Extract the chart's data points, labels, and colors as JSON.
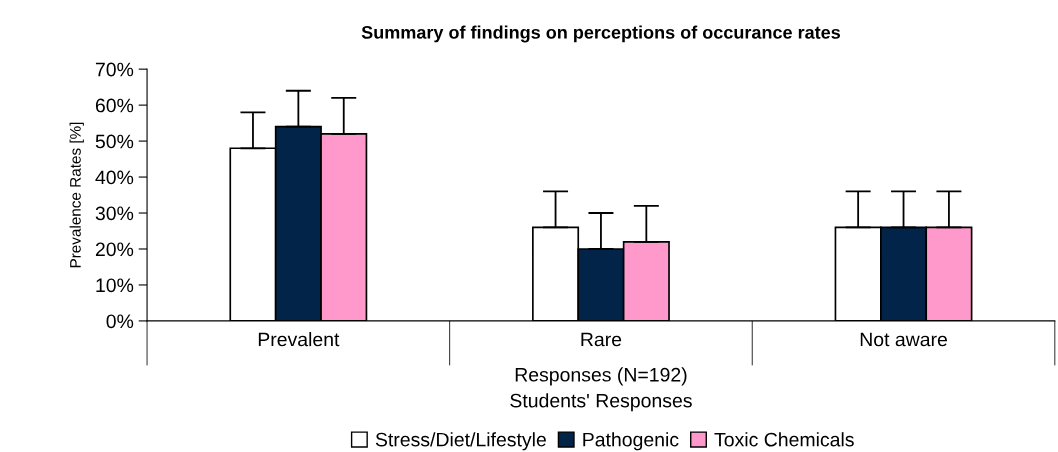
{
  "chart_data": {
    "type": "bar",
    "title": "Summary of findings on perceptions of occurance rates",
    "categories": [
      "Prevalent",
      "Rare",
      "Not aware"
    ],
    "series": [
      {
        "name": "Stress/Diet/Lifestyle",
        "color": "#ffffff",
        "values": [
          48,
          26,
          26
        ],
        "errors": [
          [
            48,
            58
          ],
          [
            26,
            36
          ],
          [
            26,
            36
          ]
        ]
      },
      {
        "name": "Pathogenic",
        "color": "#022449",
        "values": [
          54,
          20,
          26
        ],
        "errors": [
          [
            54,
            64
          ],
          [
            20,
            30
          ],
          [
            26,
            36
          ]
        ]
      },
      {
        "name": "Toxic Chemicals",
        "color": "#ff99cc",
        "values": [
          52,
          22,
          26
        ],
        "errors": [
          [
            52,
            62
          ],
          [
            22,
            32
          ],
          [
            26,
            36
          ]
        ]
      }
    ],
    "ylabel": "Prevalence Rates [%]",
    "xlabel": "Responses (N=192)",
    "annotations": [
      "Students' Responses"
    ],
    "ylim": [
      0,
      70
    ],
    "yticks": [
      {
        "value": 0,
        "label": "0%"
      },
      {
        "value": 10,
        "label": "10%"
      },
      {
        "value": 20,
        "label": "20%"
      },
      {
        "value": 30,
        "label": "30%"
      },
      {
        "value": 40,
        "label": "40%"
      },
      {
        "value": 50,
        "label": "50%"
      },
      {
        "value": 60,
        "label": "60%"
      },
      {
        "value": 70,
        "label": "70%"
      }
    ],
    "grid": false,
    "legend": "bottom"
  }
}
